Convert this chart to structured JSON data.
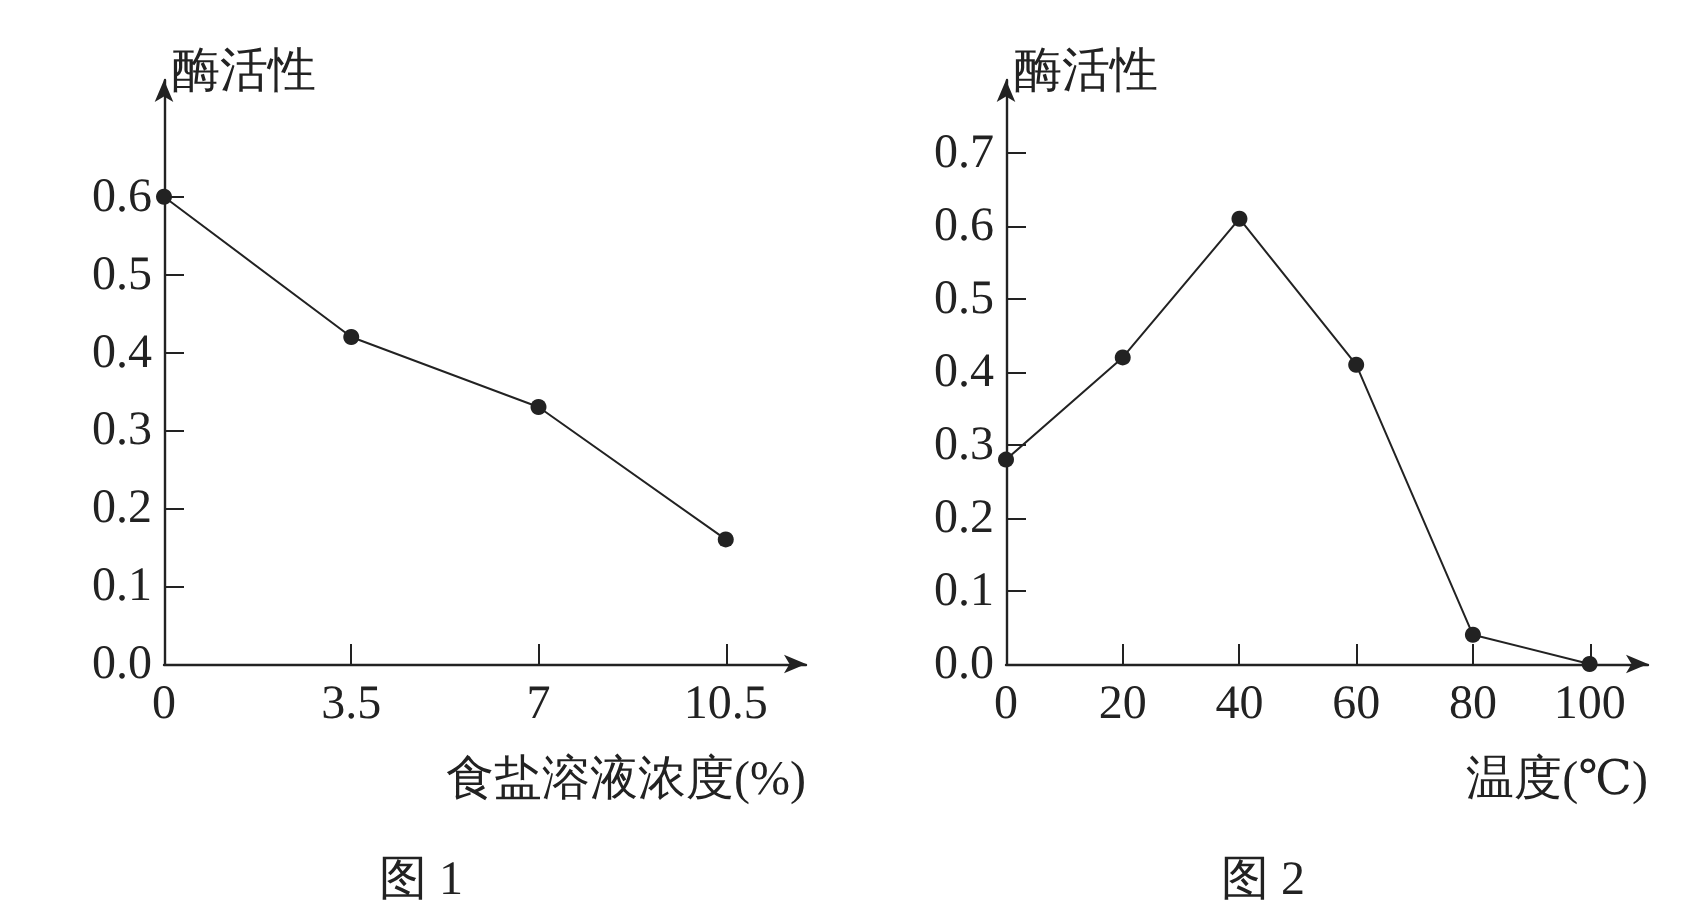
{
  "chart_data": [
    {
      "type": "line",
      "title": "图 1",
      "xlabel": "食盐溶液浓度(%)",
      "ylabel": "酶活性",
      "x": [
        0,
        3.5,
        7,
        10.5
      ],
      "series": [
        {
          "color": "#222222",
          "values": [
            0.6,
            0.42,
            0.33,
            0.16
          ]
        }
      ],
      "xlim": [
        0,
        12
      ],
      "xticks": [
        0,
        3.5,
        7,
        10.5
      ],
      "ylim": [
        0,
        0.75
      ],
      "yticks": [
        {
          "value": 0,
          "label": "0.0"
        },
        0.1,
        0.2,
        0.3,
        0.4,
        0.5,
        0.6
      ],
      "grid": false,
      "marker": "circle",
      "line_style": "solid"
    },
    {
      "type": "line",
      "title": "图 2",
      "xlabel": "温度(℃)",
      "ylabel": "酶活性",
      "x": [
        0,
        20,
        40,
        60,
        80,
        100
      ],
      "series": [
        {
          "color": "#222222",
          "values": [
            0.28,
            0.42,
            0.61,
            0.41,
            0.04,
            0
          ]
        }
      ],
      "xlim": [
        0,
        110
      ],
      "xticks": [
        0,
        20,
        40,
        60,
        80,
        100
      ],
      "ylim": [
        0,
        0.8
      ],
      "yticks": [
        {
          "value": 0,
          "label": "0.0"
        },
        0.1,
        0.2,
        0.3,
        0.4,
        0.5,
        0.6,
        0.7
      ],
      "grid": false,
      "marker": "circle",
      "line_style": "solid"
    }
  ]
}
